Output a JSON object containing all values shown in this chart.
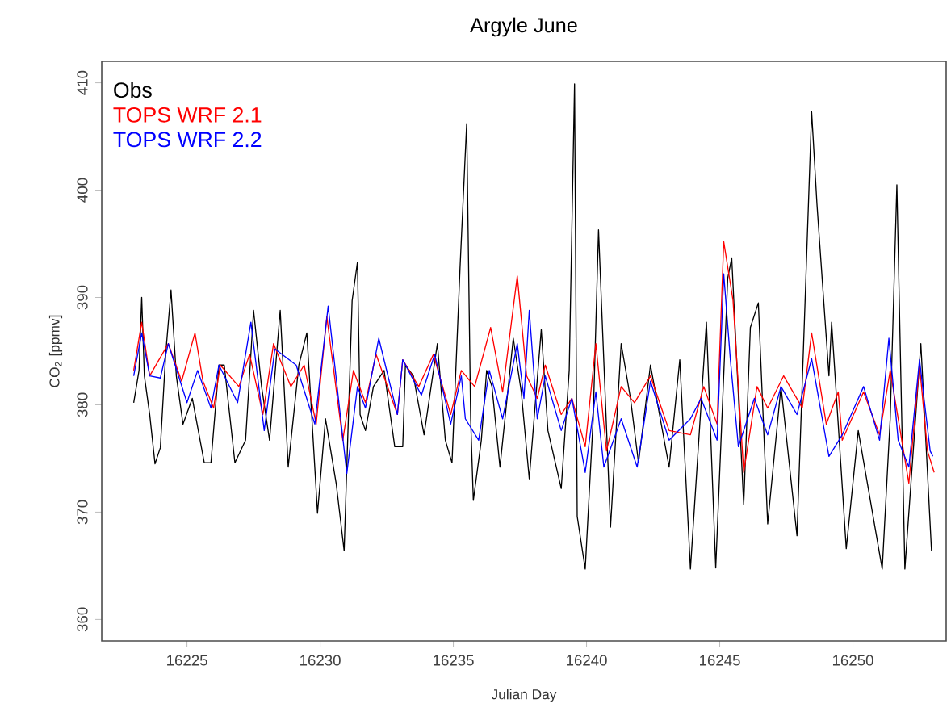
{
  "chart_data": {
    "type": "line",
    "title": "Argyle June",
    "xlabel": "Julian Day",
    "ylabel": "CO$_{2}$ [ppmv]",
    "xlim": [
      16221.8,
      16253.5
    ],
    "ylim": [
      358,
      412
    ],
    "xticks": [
      16225,
      16230,
      16235,
      16240,
      16245,
      16250
    ],
    "yticks": [
      360,
      370,
      380,
      390,
      400,
      410
    ],
    "grid": false,
    "legend": "top left",
    "marker": "none",
    "line_style": "solid",
    "series": [
      {
        "name": "Obs",
        "color": "#000000",
        "x": [
          16223.0,
          16223.2,
          16223.3,
          16223.4,
          16223.6,
          16223.8,
          16224.0,
          16224.2,
          16224.4,
          16224.6,
          16224.85,
          16225.2,
          16225.65,
          16225.9,
          16226.2,
          16226.4,
          16226.8,
          16227.2,
          16227.5,
          16227.8,
          16228.1,
          16228.5,
          16228.8,
          16229.2,
          16229.5,
          16229.9,
          16230.2,
          16230.6,
          16230.9,
          16231.2,
          16231.4,
          16231.5,
          16231.7,
          16232.0,
          16232.4,
          16232.8,
          16233.1,
          16233.2,
          16233.5,
          16233.9,
          16234.4,
          16234.7,
          16234.95,
          16235.25,
          16235.5,
          16235.65,
          16235.75,
          16236.05,
          16236.25,
          16236.45,
          16236.75,
          16237.25,
          16237.55,
          16237.85,
          16238.3,
          16238.55,
          16239.05,
          16239.35,
          16239.55,
          16239.65,
          16239.95,
          16240.25,
          16240.45,
          16240.9,
          16241.3,
          16241.65,
          16241.95,
          16242.4,
          16243.1,
          16243.5,
          16243.9,
          16244.5,
          16244.85,
          16245.3,
          16245.45,
          16245.9,
          16246.15,
          16246.45,
          16246.8,
          16247.3,
          16247.9,
          16248.45,
          16248.65,
          16249.1,
          16249.2,
          16249.75,
          16250.2,
          16251.1,
          16251.4,
          16251.65,
          16251.95,
          16252.55,
          16252.95
        ],
        "values": [
          380.2,
          383.2,
          390,
          382.7,
          379.1,
          374.5,
          376,
          384.7,
          390.7,
          382.7,
          378.2,
          380.6,
          374.6,
          374.6,
          383.7,
          383.7,
          374.6,
          376.7,
          388.8,
          381.7,
          376.7,
          388.8,
          374.2,
          383.7,
          386.7,
          369.9,
          378.7,
          372.7,
          366.4,
          389.7,
          393.3,
          379.1,
          377.6,
          381.7,
          383.2,
          376.1,
          376.1,
          383.7,
          382.7,
          377.2,
          385.7,
          376.7,
          374.6,
          392.7,
          406.2,
          378.7,
          371.1,
          376.7,
          383.2,
          381.7,
          374.2,
          386.2,
          381.2,
          373.1,
          387,
          377.6,
          372.2,
          383.2,
          409.9,
          369.6,
          364.7,
          378.7,
          396.3,
          368.6,
          385.7,
          380.6,
          374.6,
          383.7,
          374.2,
          384.2,
          364.7,
          387.7,
          364.8,
          391.8,
          393.7,
          370.7,
          387.2,
          389.5,
          368.9,
          381.7,
          367.8,
          407.3,
          398.7,
          382.7,
          387.7,
          366.6,
          377.6,
          364.7,
          378.7,
          400.5,
          364.7,
          385.7,
          366.4
        ]
      },
      {
        "name": "TOPS WRF 2.1",
        "color": "#ff0000",
        "x": [
          16223.0,
          16223.3,
          16223.6,
          16224.3,
          16224.8,
          16225.3,
          16225.6,
          16226.0,
          16226.25,
          16226.95,
          16227.35,
          16227.85,
          16228.25,
          16228.9,
          16229.4,
          16229.85,
          16230.25,
          16230.85,
          16231.25,
          16231.7,
          16232.1,
          16232.9,
          16233.1,
          16233.7,
          16234.25,
          16234.9,
          16235.3,
          16235.8,
          16236.4,
          16236.85,
          16237.4,
          16237.75,
          16238.15,
          16238.45,
          16239.05,
          16239.45,
          16239.95,
          16240.35,
          16240.75,
          16241.3,
          16241.8,
          16242.4,
          16243.1,
          16243.9,
          16244.4,
          16244.9,
          16245.15,
          16245.5,
          16245.9,
          16246.4,
          16246.8,
          16247.4,
          16248.1,
          16248.45,
          16249.0,
          16249.45,
          16249.6,
          16250.4,
          16251.0,
          16251.4,
          16252.1,
          16252.5,
          16252.8,
          16253.05
        ],
        "values": [
          383.2,
          387.7,
          382.7,
          385.7,
          382.2,
          386.7,
          382.2,
          379.7,
          383.7,
          381.7,
          384.7,
          379.1,
          385.7,
          381.7,
          383.7,
          378.2,
          388.2,
          376.7,
          383.2,
          380.2,
          384.7,
          379.1,
          384.2,
          381.7,
          384.7,
          379.1,
          383.2,
          381.7,
          387.2,
          381.2,
          392,
          382.7,
          380.6,
          383.7,
          379.1,
          380.6,
          376.1,
          385.7,
          375.7,
          381.7,
          380.2,
          382.7,
          377.6,
          377.2,
          381.7,
          378.2,
          395.2,
          389.7,
          373.7,
          381.7,
          379.7,
          382.7,
          379.7,
          386.7,
          378.2,
          381.2,
          376.7,
          381.2,
          377.2,
          383.2,
          372.7,
          383.7,
          375.7,
          373.7
        ]
      },
      {
        "name": "TOPS WRF 2.2",
        "color": "#0000ff",
        "x": [
          16223.0,
          16223.3,
          16223.6,
          16224.0,
          16224.3,
          16225.0,
          16225.4,
          16225.9,
          16226.2,
          16226.9,
          16227.4,
          16227.9,
          16228.3,
          16229.1,
          16229.8,
          16230.3,
          16231.0,
          16231.4,
          16231.7,
          16232.2,
          16232.9,
          16233.1,
          16233.8,
          16234.3,
          16234.9,
          16235.3,
          16235.45,
          16235.95,
          16236.35,
          16236.85,
          16237.4,
          16237.65,
          16237.85,
          16238.15,
          16238.45,
          16239.05,
          16239.45,
          16239.95,
          16240.35,
          16240.65,
          16241.3,
          16241.9,
          16242.4,
          16243.1,
          16243.9,
          16244.3,
          16244.9,
          16245.15,
          16245.4,
          16245.7,
          16246.3,
          16246.8,
          16247.3,
          16247.9,
          16248.45,
          16249.1,
          16249.6,
          16250.4,
          16251.0,
          16251.35,
          16251.7,
          16252.1,
          16252.5,
          16252.9,
          16253.0
        ],
        "values": [
          382.7,
          386.7,
          382.7,
          382.5,
          385.7,
          380.2,
          383.2,
          379.7,
          383.7,
          380.2,
          387.7,
          377.6,
          385.2,
          383.7,
          378.2,
          389.2,
          373.6,
          381.7,
          379.7,
          386.2,
          379.1,
          384.2,
          380.9,
          384.7,
          378.2,
          382.7,
          378.7,
          376.7,
          383.2,
          378.7,
          385.7,
          380.6,
          388.8,
          378.7,
          382.7,
          377.6,
          380.6,
          373.7,
          381.2,
          374.2,
          378.7,
          374.2,
          382.2,
          376.7,
          378.7,
          380.6,
          376.7,
          392.2,
          384.2,
          376.1,
          380.6,
          377.2,
          381.7,
          379.1,
          384.3,
          375.2,
          377.2,
          381.7,
          376.7,
          386.2,
          376.7,
          374.2,
          384.2,
          375.7,
          375.2
        ]
      }
    ]
  }
}
